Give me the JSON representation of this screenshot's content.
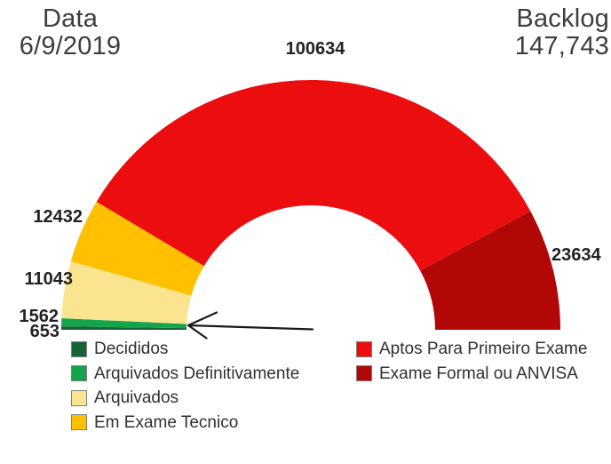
{
  "header": {
    "date_label": "Data",
    "date_value": "6/9/2019",
    "backlog_label": "Backlog",
    "backlog_value": "147,743"
  },
  "chart_data": {
    "type": "pie",
    "subtype": "semicircle-donut",
    "sweep_degrees": 180,
    "order": "clockwise from left (180°) to right (0°)",
    "segments": [
      {
        "label": "Decididos",
        "value": 653,
        "color": "#166336"
      },
      {
        "label": "Arquivados Definitivamente",
        "value": 1562,
        "color": "#14A44C"
      },
      {
        "label": "Arquivados",
        "value": 11043,
        "color": "#FAE48F"
      },
      {
        "label": "Em Exame Tecnico",
        "value": 12432,
        "color": "#FFC000"
      },
      {
        "label": "Aptos Para Primeiro Exame",
        "value": 100634,
        "color": "#EC0E0E"
      },
      {
        "label": "Exame Formal ou ANVISA",
        "value": 23634,
        "color": "#B20707"
      }
    ],
    "annotations": [
      {
        "type": "arrow",
        "target": "smallest green segments (653 / 1562)"
      }
    ],
    "legend_position": "bottom, two columns",
    "legend_columns": {
      "left_indices": [
        0,
        1,
        2,
        3
      ],
      "right_indices": [
        4,
        5
      ]
    }
  },
  "arrow_color": "#1a1a1a"
}
